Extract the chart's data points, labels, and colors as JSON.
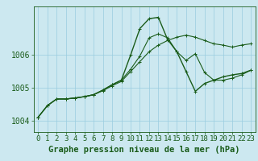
{
  "hours": [
    0,
    1,
    2,
    3,
    4,
    5,
    6,
    7,
    8,
    9,
    10,
    11,
    12,
    13,
    14,
    15,
    16,
    17,
    18,
    19,
    20,
    21,
    22,
    23
  ],
  "line1": [
    1004.1,
    1004.45,
    1004.65,
    1004.65,
    1004.68,
    1004.72,
    1004.78,
    1004.92,
    1005.08,
    1005.22,
    1005.55,
    1005.95,
    1006.5,
    1006.62,
    1006.5,
    1006.08,
    1005.82,
    1006.02,
    1005.45,
    1005.22,
    1005.22,
    1005.28,
    1005.38,
    1005.52
  ],
  "line2": [
    1004.1,
    1004.45,
    1004.65,
    1004.65,
    1004.68,
    1004.72,
    1004.78,
    1004.92,
    1005.08,
    1005.22,
    1005.98,
    1006.78,
    1007.08,
    1007.12,
    1006.45,
    1006.08,
    1005.48,
    1004.88,
    1005.12,
    1005.22,
    1005.32,
    1005.38,
    1005.42,
    1005.52
  ],
  "line3": [
    1004.1,
    1004.45,
    1004.65,
    1004.65,
    1004.68,
    1004.72,
    1004.78,
    1004.9,
    1005.05,
    1005.18,
    1005.48,
    1005.78,
    1006.08,
    1006.28,
    1006.42,
    1006.52,
    1006.58,
    1006.52,
    1006.42,
    1006.32,
    1006.28,
    1006.22,
    1006.28,
    1006.32
  ],
  "bg_color": "#cce8f0",
  "grid_color": "#99cce0",
  "line_color": "#1a5c1a",
  "xlabel": "Graphe pression niveau de la mer (hPa)",
  "ylim": [
    1003.65,
    1007.45
  ],
  "yticks": [
    1004,
    1005,
    1006
  ],
  "xlabel_fontsize": 7.5,
  "tick_fontsize": 6.5
}
